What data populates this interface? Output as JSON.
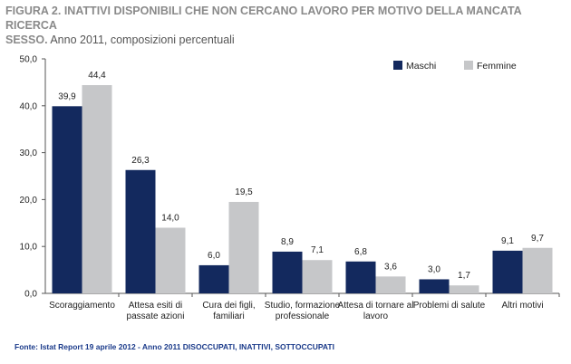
{
  "header": {
    "figure_title": "FIGURA 2. INATTIVI DISPONIBILI CHE NON CERCANO LAVORO PER MOTIVO DELLA MANCATA RICERCA",
    "figure_title_cont": "SESSO.",
    "subtitle": "Anno 2011, composizioni percentuali"
  },
  "footer": {
    "source": "Fonte: Istat Report 19 aprile 2012 - Anno 2011  DISOCCUPATI, INATTIVI, SOTTOCCUPATI"
  },
  "colors": {
    "maschi": "#13295e",
    "femmine": "#c6c7c9",
    "axis": "#555555",
    "text": "#222222"
  },
  "chart_data": {
    "type": "bar",
    "categories": [
      [
        "Scoraggiamento"
      ],
      [
        "Attesa esiti di",
        "passate azioni"
      ],
      [
        "Cura dei figli,",
        "familiari"
      ],
      [
        "Studio, formazione",
        "professionale"
      ],
      [
        "Attesa di tornare al",
        "lavoro"
      ],
      [
        "Problemi di salute"
      ],
      [
        "Altri motivi"
      ]
    ],
    "series": [
      {
        "name": "Maschi",
        "values": [
          39.9,
          26.3,
          6.0,
          8.9,
          6.8,
          3.0,
          9.1
        ],
        "labels": [
          "39,9",
          "26,3",
          "6,0",
          "8,9",
          "6,8",
          "3,0",
          "9,1"
        ]
      },
      {
        "name": "Femmine",
        "values": [
          44.4,
          14.0,
          19.5,
          7.1,
          3.6,
          1.7,
          9.7
        ],
        "labels": [
          "44,4",
          "14,0",
          "19,5",
          "7,1",
          "3,6",
          "1,7",
          "9,7"
        ]
      }
    ],
    "ylim": [
      0,
      50
    ],
    "yticks": [
      0,
      10,
      20,
      30,
      40,
      50
    ],
    "ytick_labels": [
      "0,0",
      "10,0",
      "20,0",
      "30,0",
      "40,0",
      "50,0"
    ],
    "legend_position": "top-right",
    "grid": false
  }
}
